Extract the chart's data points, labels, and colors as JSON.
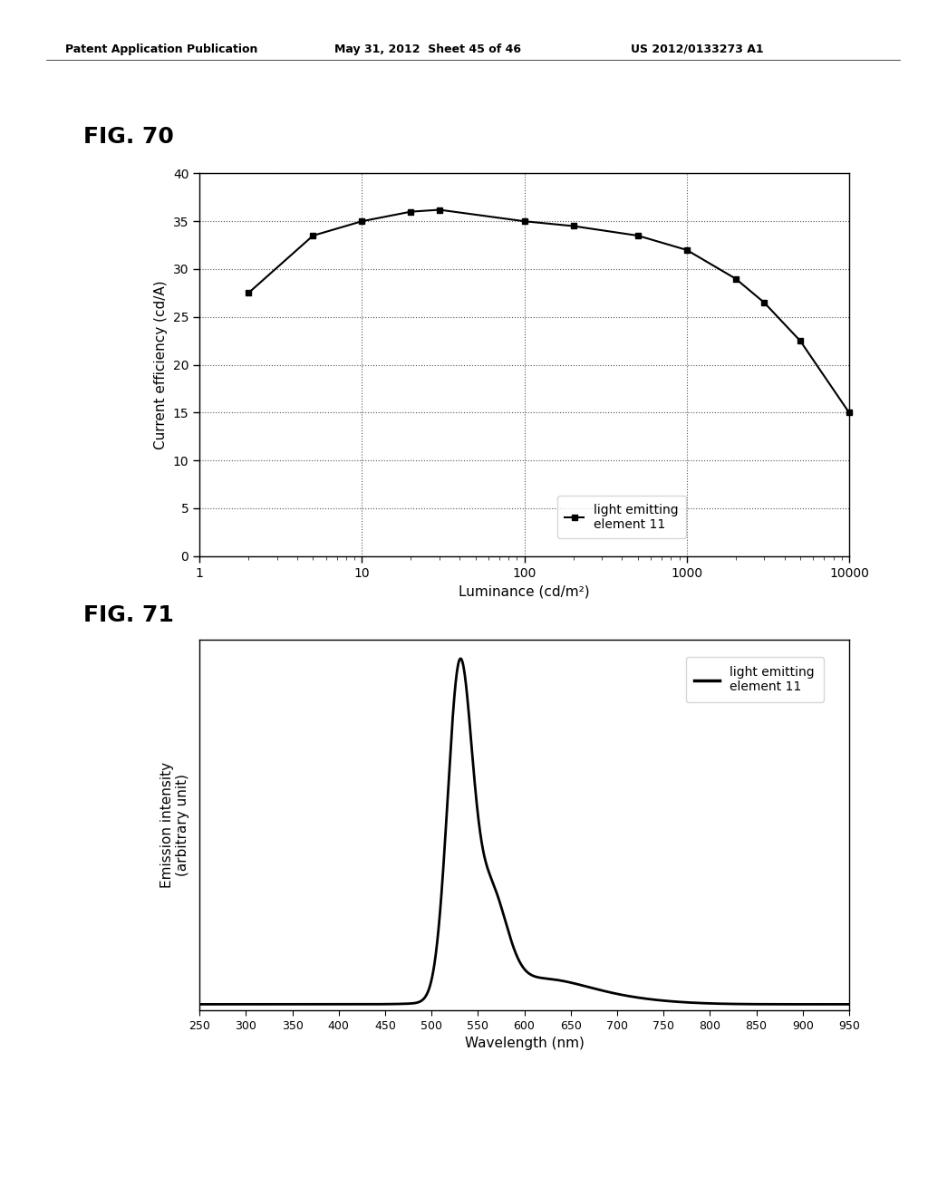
{
  "header_left": "Patent Application Publication",
  "header_mid": "May 31, 2012  Sheet 45 of 46",
  "header_right": "US 2012/0133273 A1",
  "fig70_label": "FIG. 70",
  "fig71_label": "FIG. 71",
  "fig70": {
    "x": [
      2,
      5,
      10,
      20,
      30,
      100,
      200,
      500,
      1000,
      2000,
      3000,
      5000,
      10000
    ],
    "y": [
      27.5,
      33.5,
      35.0,
      36.0,
      36.2,
      35.0,
      34.5,
      33.5,
      32.0,
      29.0,
      26.5,
      22.5,
      15.0
    ],
    "xlabel": "Luminance (cd/m²)",
    "ylabel": "Current efficiency (cd/A)",
    "ylim": [
      0,
      40
    ],
    "yticks": [
      0,
      5,
      10,
      15,
      20,
      25,
      30,
      35,
      40
    ],
    "xlim_log": [
      1,
      10000
    ],
    "legend_label": "light emitting\nelement 11",
    "marker": "s",
    "color": "#000000",
    "linewidth": 1.5,
    "markersize": 5
  },
  "fig71": {
    "xlabel": "Wavelength (nm)",
    "ylabel": "Emission intensity\n(arbitrary unit)",
    "xlim": [
      250,
      950
    ],
    "xticks": [
      250,
      300,
      350,
      400,
      450,
      500,
      550,
      600,
      650,
      700,
      750,
      800,
      850,
      900,
      950
    ],
    "legend_label": "light emitting\nelement 11",
    "color": "#000000",
    "linewidth": 2.0
  },
  "background_color": "#ffffff",
  "text_color": "#000000"
}
